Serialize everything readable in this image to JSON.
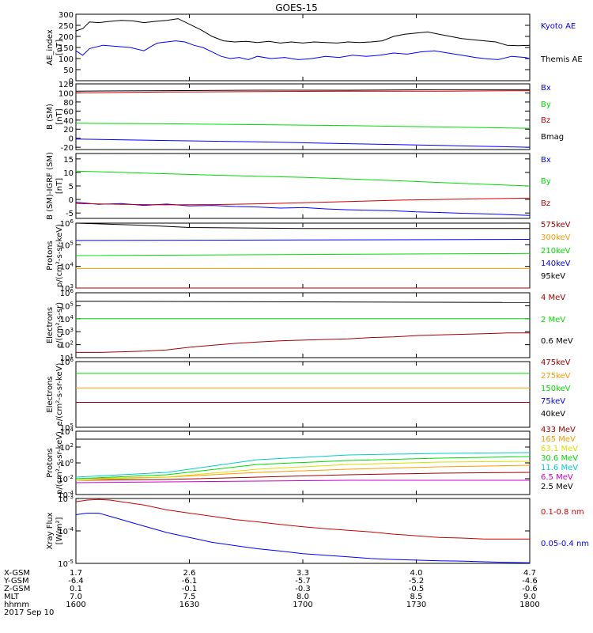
{
  "title": "GOES-15",
  "colors": {
    "black": "#000000",
    "blue": "#0000ff",
    "green": "#00dd00",
    "red": "#cc0000",
    "darkred": "#a00000",
    "orange": "#ff9900",
    "yellow": "#dddd00",
    "cyan": "#00cccc",
    "teal": "#006699",
    "magenta": "#cc00cc"
  },
  "chart_data": [
    {
      "type": "line",
      "ylabel": "AE_index [nT]",
      "ylim": [
        0,
        300
      ],
      "yticks": [
        "0",
        "50",
        "100",
        "150",
        "200",
        "250",
        "300"
      ],
      "xlim": [
        1600,
        1800
      ],
      "series": [
        {
          "name": "Kyoto AE",
          "color": "#0000ff",
          "x": [
            1600,
            1603,
            1606,
            1612,
            1618,
            1624,
            1630,
            1634,
            1636,
            1640,
            1644,
            1648,
            1652,
            1656,
            1660,
            1664,
            1668,
            1672,
            1676,
            1680,
            1686,
            1692,
            1698,
            1704,
            1710,
            1716,
            1722,
            1728,
            1734,
            1740,
            1746,
            1752,
            1758,
            1764,
            1770,
            1776,
            1780,
            1786,
            1792,
            1798,
            1800
          ],
          "y": [
            135,
            115,
            145,
            160,
            155,
            150,
            135,
            160,
            170,
            175,
            180,
            175,
            160,
            150,
            130,
            110,
            100,
            105,
            95,
            110,
            100,
            105,
            95,
            100,
            110,
            105,
            115,
            110,
            115,
            125,
            120,
            130,
            135,
            125,
            115,
            105,
            100,
            95,
            110,
            105,
            100
          ]
        },
        {
          "name": "Themis AE",
          "color": "#000000",
          "x": [
            1600,
            1603,
            1606,
            1610,
            1615,
            1620,
            1625,
            1630,
            1635,
            1640,
            1645,
            1650,
            1655,
            1660,
            1665,
            1670,
            1675,
            1680,
            1685,
            1690,
            1695,
            1700,
            1705,
            1710,
            1715,
            1720,
            1725,
            1730,
            1735,
            1740,
            1745,
            1750,
            1755,
            1760,
            1765,
            1770,
            1775,
            1780,
            1785,
            1790,
            1795,
            1800
          ],
          "y": [
            225,
            235,
            265,
            262,
            268,
            272,
            270,
            262,
            268,
            272,
            280,
            255,
            230,
            200,
            180,
            175,
            178,
            172,
            178,
            170,
            175,
            170,
            175,
            172,
            170,
            175,
            172,
            175,
            180,
            200,
            210,
            215,
            220,
            210,
            200,
            190,
            185,
            180,
            175,
            160,
            158,
            160
          ]
        }
      ]
    },
    {
      "type": "line",
      "ylabel": "B (SM) [nT]",
      "ylim": [
        -25,
        120
      ],
      "yticks": [
        "-20",
        "0",
        "20",
        "40",
        "60",
        "80",
        "100",
        "120"
      ],
      "xlim": [
        1600,
        1800
      ],
      "series": [
        {
          "name": "Bx",
          "color": "#0000ff",
          "x": [
            1600,
            1640,
            1680,
            1720,
            1760,
            1800
          ],
          "y": [
            -2,
            -5,
            -8,
            -12,
            -16,
            -20
          ]
        },
        {
          "name": "By",
          "color": "#00dd00",
          "x": [
            1600,
            1640,
            1680,
            1720,
            1760,
            1800
          ],
          "y": [
            33,
            32,
            30,
            28,
            25,
            22
          ]
        },
        {
          "name": "Bz",
          "color": "#cc0000",
          "x": [
            1600,
            1640,
            1680,
            1720,
            1760,
            1800
          ],
          "y": [
            100,
            102,
            103,
            104,
            104,
            105
          ]
        },
        {
          "name": "Bmag",
          "color": "#000000",
          "x": [
            1600,
            1640,
            1680,
            1720,
            1760,
            1800
          ],
          "y": [
            104,
            105,
            106,
            106,
            107,
            107
          ]
        }
      ]
    },
    {
      "type": "line",
      "ylabel": "B (SM)-IGRF (SM) [nT]",
      "ylim": [
        -7,
        17
      ],
      "yticks": [
        "-5",
        "0",
        "5",
        "10",
        "15"
      ],
      "xlim": [
        1600,
        1800
      ],
      "series": [
        {
          "name": "Bx",
          "color": "#0000ff",
          "x": [
            1600,
            1610,
            1620,
            1630,
            1640,
            1650,
            1660,
            1670,
            1680,
            1690,
            1700,
            1710,
            1720,
            1730,
            1740,
            1750,
            1760,
            1770,
            1780,
            1790,
            1800
          ],
          "y": [
            -1.0,
            -1.8,
            -1.5,
            -2.2,
            -1.7,
            -2.4,
            -2.2,
            -2.6,
            -2.8,
            -3.2,
            -3.0,
            -3.5,
            -3.8,
            -4.0,
            -4.2,
            -4.6,
            -4.8,
            -5.1,
            -5.3,
            -5.6,
            -5.9
          ]
        },
        {
          "name": "By",
          "color": "#00dd00",
          "x": [
            1600,
            1620,
            1640,
            1660,
            1680,
            1700,
            1720,
            1740,
            1760,
            1780,
            1800
          ],
          "y": [
            10.5,
            10.0,
            9.5,
            9.0,
            8.6,
            8.2,
            7.6,
            7.0,
            6.3,
            5.6,
            5.0
          ]
        },
        {
          "name": "Bz",
          "color": "#cc0000",
          "x": [
            1600,
            1620,
            1640,
            1660,
            1680,
            1700,
            1720,
            1740,
            1760,
            1780,
            1800
          ],
          "y": [
            -1.5,
            -1.8,
            -2.0,
            -1.9,
            -1.6,
            -1.2,
            -0.8,
            -0.3,
            0.0,
            0.3,
            0.5
          ]
        }
      ]
    },
    {
      "type": "line",
      "log": true,
      "ylabel": "Protons p/(cm²-s-sr-keV)",
      "ylim": [
        3,
        6
      ],
      "yticks": [
        "10^3",
        "10^4",
        "10^5",
        "10^6"
      ],
      "xlim": [
        1600,
        1800
      ],
      "series": [
        {
          "name": "575keV",
          "color": "#a00000",
          "x": [
            1600,
            1700,
            1800
          ],
          "y": [
            3.0,
            3.0,
            3.0
          ]
        },
        {
          "name": "300keV",
          "color": "#ff9900",
          "x": [
            1600,
            1700,
            1800
          ],
          "y": [
            3.9,
            3.9,
            3.9
          ]
        },
        {
          "name": "210keV",
          "color": "#00dd00",
          "x": [
            1600,
            1700,
            1800
          ],
          "y": [
            4.5,
            4.55,
            4.6
          ]
        },
        {
          "name": "140keV",
          "color": "#0000ff",
          "x": [
            1600,
            1700,
            1800
          ],
          "y": [
            5.2,
            5.22,
            5.25
          ]
        },
        {
          "name": "95keV",
          "color": "#000000",
          "x": [
            1600,
            1630,
            1650,
            1700,
            1800
          ],
          "y": [
            6.0,
            5.9,
            5.8,
            5.75,
            5.75
          ]
        }
      ]
    },
    {
      "type": "line",
      "log": true,
      "ylabel": "Electrons e/(cm²-s-sr)",
      "ylim": [
        1,
        6
      ],
      "yticks": [
        "10^1",
        "10^2",
        "10^3",
        "10^4",
        "10^5",
        "10^6"
      ],
      "xlim": [
        1600,
        1800
      ],
      "series": [
        {
          "name": "4 MeV",
          "color": "#a00000",
          "x": [
            1600,
            1610,
            1620,
            1630,
            1640,
            1650,
            1660,
            1670,
            1680,
            1690,
            1700,
            1710,
            1720,
            1730,
            1740,
            1750,
            1760,
            1770,
            1780,
            1790,
            1800
          ],
          "y": [
            1.4,
            1.4,
            1.45,
            1.5,
            1.6,
            1.8,
            1.95,
            2.1,
            2.2,
            2.3,
            2.35,
            2.4,
            2.45,
            2.55,
            2.6,
            2.7,
            2.75,
            2.8,
            2.85,
            2.9,
            2.9
          ]
        },
        {
          "name": "2 MeV",
          "color": "#00dd00",
          "x": [
            1600,
            1700,
            1800
          ],
          "y": [
            4.0,
            4.0,
            4.0
          ]
        },
        {
          "name": "0.6 MeV",
          "color": "#000000",
          "x": [
            1600,
            1700,
            1800
          ],
          "y": [
            5.35,
            5.3,
            5.25
          ]
        }
      ]
    },
    {
      "type": "line",
      "log": true,
      "ylabel": "Electrons e/(cm²-s-sr-keV)",
      "ylim": [
        5,
        6
      ],
      "yticks": [
        "10^5",
        "10^6"
      ],
      "xlim": [
        1600,
        1800
      ],
      "series": [
        {
          "name": "475keV",
          "color": "#a00000",
          "x": [
            1600,
            1700,
            1800
          ],
          "y": [
            5.38,
            5.38,
            5.38
          ]
        },
        {
          "name": "275keV",
          "color": "#ff9900",
          "x": [
            1600,
            1700,
            1800
          ],
          "y": [
            5.6,
            5.6,
            5.6
          ]
        },
        {
          "name": "150keV",
          "color": "#00dd00",
          "x": [
            1600,
            1700,
            1800
          ],
          "y": [
            5.82,
            5.82,
            5.82
          ]
        },
        {
          "name": "75keV",
          "color": "#0000ff",
          "x": [
            1600,
            1800
          ],
          "y": [
            null,
            null
          ]
        },
        {
          "name": "40keV",
          "color": "#000000",
          "x": [
            1600,
            1800
          ],
          "y": [
            null,
            null
          ]
        }
      ]
    },
    {
      "type": "line",
      "log": true,
      "ylabel": "Protons p/(cm²-s-sr-keV)",
      "ylim": [
        -4,
        4
      ],
      "yticks": [
        "10^-4",
        "10^-2",
        "10^0",
        "10^2",
        "10^4"
      ],
      "xlim": [
        1600,
        1800
      ],
      "series": [
        {
          "name": "433 MeV",
          "color": "#a00000",
          "x": [
            1600,
            1640,
            1680,
            1720,
            1760,
            1800
          ],
          "y": [
            -2.2,
            -2.1,
            -1.8,
            -1.5,
            -1.3,
            -1.2
          ]
        },
        {
          "name": "165 MeV",
          "color": "#ff9900",
          "x": [
            1600,
            1640,
            1680,
            1720,
            1760,
            1800
          ],
          "y": [
            -2.0,
            -1.8,
            -1.2,
            -0.8,
            -0.5,
            -0.3
          ]
        },
        {
          "name": "63.1 MeV",
          "color": "#dddd00",
          "x": [
            1600,
            1640,
            1680,
            1720,
            1760,
            1800
          ],
          "y": [
            -2.2,
            -1.8,
            -0.8,
            -0.2,
            0.1,
            0.2
          ]
        },
        {
          "name": "30.6 MeV",
          "color": "#00dd00",
          "x": [
            1600,
            1640,
            1680,
            1720,
            1760,
            1800
          ],
          "y": [
            -2.0,
            -1.5,
            -0.2,
            0.3,
            0.6,
            0.8
          ]
        },
        {
          "name": "11.6 MeV",
          "color": "#00cccc",
          "x": [
            1600,
            1640,
            1680,
            1720,
            1760,
            1800
          ],
          "y": [
            -1.8,
            -1.2,
            0.4,
            1.0,
            1.2,
            1.3
          ]
        },
        {
          "name": "6.5 MeV",
          "color": "#cc00cc",
          "x": [
            1600,
            1640,
            1680,
            1720,
            1760,
            1800
          ],
          "y": [
            -2.5,
            -2.4,
            -2.3,
            -2.2,
            -2.2,
            -2.2
          ]
        },
        {
          "name": "2.5 MeV",
          "color": "#000000",
          "x": [
            1600,
            1640,
            1680,
            1720,
            1760,
            1800
          ],
          "y": [
            3.0,
            3.0,
            3.0,
            3.0,
            3.0,
            3.0
          ]
        }
      ]
    },
    {
      "type": "line",
      "log": true,
      "ylabel": "Xray Flux [W/m²]",
      "ylim": [
        -5,
        -3
      ],
      "yticks": [
        "10^-5",
        "10^-4",
        "10^-3"
      ],
      "xlim": [
        1600,
        1800
      ],
      "series": [
        {
          "name": "0.1-0.8 nm",
          "color": "#cc0000",
          "x": [
            1600,
            1605,
            1610,
            1615,
            1620,
            1630,
            1640,
            1650,
            1660,
            1670,
            1680,
            1690,
            1700,
            1710,
            1720,
            1730,
            1740,
            1750,
            1760,
            1770,
            1780,
            1790,
            1800
          ],
          "y": [
            -3.1,
            -3.05,
            -3.03,
            -3.05,
            -3.1,
            -3.2,
            -3.35,
            -3.45,
            -3.55,
            -3.65,
            -3.72,
            -3.8,
            -3.87,
            -3.93,
            -3.98,
            -4.03,
            -4.1,
            -4.15,
            -4.2,
            -4.22,
            -4.25,
            -4.25,
            -4.25
          ]
        },
        {
          "name": "0.05-0.4 nm",
          "color": "#0000ff",
          "x": [
            1600,
            1605,
            1610,
            1615,
            1620,
            1630,
            1640,
            1650,
            1660,
            1670,
            1680,
            1690,
            1700,
            1710,
            1720,
            1730,
            1740,
            1750,
            1760,
            1770,
            1780,
            1790,
            1800
          ],
          "y": [
            -3.5,
            -3.45,
            -3.45,
            -3.55,
            -3.65,
            -3.85,
            -4.05,
            -4.2,
            -4.35,
            -4.45,
            -4.55,
            -4.62,
            -4.7,
            -4.75,
            -4.8,
            -4.85,
            -4.88,
            -4.9,
            -4.92,
            -4.93,
            -4.95,
            -4.97,
            -4.98
          ]
        }
      ]
    }
  ],
  "xaxis": {
    "rows": [
      {
        "label": "X-GSM",
        "values": [
          "1.7",
          "2.6",
          "3.3",
          "4.0",
          "4.7"
        ]
      },
      {
        "label": "Y-GSM",
        "values": [
          "-6.4",
          "-6.1",
          "-5.7",
          "-5.2",
          "-4.6"
        ]
      },
      {
        "label": "Z-GSM",
        "values": [
          "0.1",
          "-0.1",
          "-0.3",
          "-0.5",
          "-0.6"
        ]
      },
      {
        "label": "MLT",
        "values": [
          "7.0",
          "7.5",
          "8.0",
          "8.5",
          "9.0"
        ]
      },
      {
        "label": "hhmm",
        "values": [
          "1600",
          "1630",
          "1700",
          "1730",
          "1800"
        ]
      }
    ],
    "date": "2017 Sep 10"
  },
  "legend_labels": [
    [
      "Kyoto AE",
      "Themis AE"
    ],
    [
      "Bx",
      "By",
      "Bz",
      "Bmag"
    ],
    [
      "Bx",
      "By",
      "Bz"
    ],
    [
      "575keV",
      "300keV",
      "210keV",
      "140keV",
      "95keV"
    ],
    [
      "4 MeV",
      "2 MeV",
      "0.6 MeV"
    ],
    [
      "475keV",
      "275keV",
      "150keV",
      "75keV",
      "40keV"
    ],
    [
      "433 MeV",
      "165 MeV",
      "63.1 MeV",
      "30.6 MeV",
      "11.6 MeV",
      "6.5 MeV",
      "2.5 MeV"
    ],
    [
      "0.1-0.8 nm",
      "0.05-0.4 nm"
    ]
  ],
  "ylabels": [
    [
      "AE_index",
      "[nT]"
    ],
    [
      "B (SM)",
      "[nT]"
    ],
    [
      "B (SM)-IGRF (SM)",
      "[nT]"
    ],
    [
      "Protons",
      "p/(cm²-s-sr-keV)"
    ],
    [
      "Electrons",
      "e/(cm²-s-sr)"
    ],
    [
      "Electrons",
      "e/(cm²-s-sr-keV)"
    ],
    [
      "Protons",
      "p/(cm²-s-sr-keV)"
    ],
    [
      "Xray Flux",
      "[W/m²]"
    ]
  ]
}
